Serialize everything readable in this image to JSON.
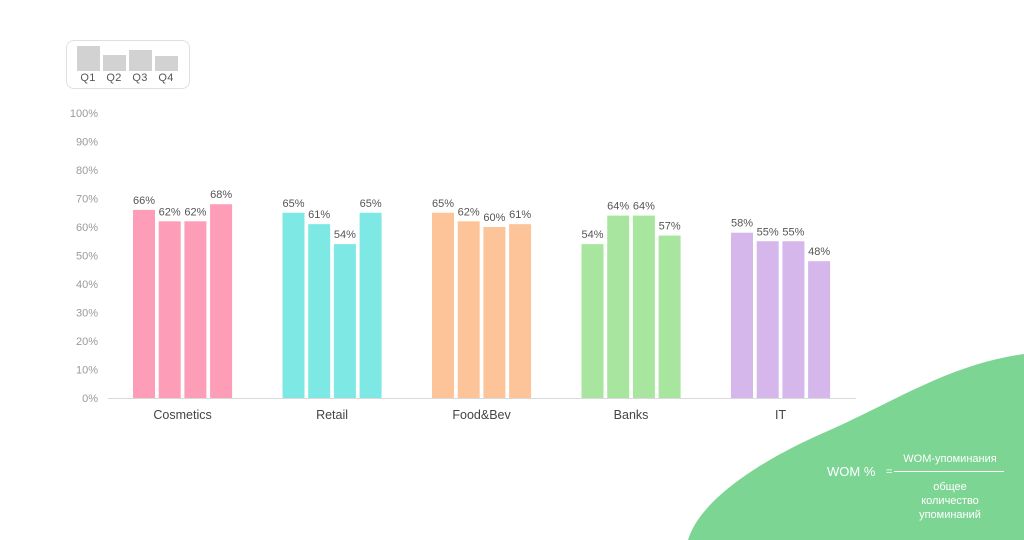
{
  "legend": {
    "labels": [
      "Q1",
      "Q2",
      "Q3",
      "Q4"
    ]
  },
  "formula": {
    "lhs": "WOM %",
    "equals": "=",
    "numerator": "WOM-упоминания",
    "denominator_lines": [
      "общее",
      "количество",
      "упоминаний"
    ]
  },
  "colors": {
    "Cosmetics": "#fe9db8",
    "Retail": "#7ee8e4",
    "Food&Bev": "#fdc49a",
    "Banks": "#a8e6a0",
    "IT": "#d5b7ec",
    "blob": "#7dd594",
    "legend_bars": "#d2d2d2"
  },
  "chart_data": {
    "type": "bar",
    "categories": [
      "Cosmetics",
      "Retail",
      "Food&Bev",
      "Banks",
      "IT"
    ],
    "series": [
      {
        "name": "Q1",
        "values": [
          66,
          65,
          65,
          54,
          58
        ]
      },
      {
        "name": "Q2",
        "values": [
          62,
          61,
          62,
          64,
          55
        ]
      },
      {
        "name": "Q3",
        "values": [
          62,
          54,
          60,
          64,
          55
        ]
      },
      {
        "name": "Q4",
        "values": [
          68,
          65,
          61,
          57,
          48
        ]
      }
    ],
    "data_labels": [
      [
        "66%",
        "62%",
        "62%",
        "68%"
      ],
      [
        "65%",
        "61%",
        "54%",
        "65%"
      ],
      [
        "65%",
        "62%",
        "60%",
        "61%"
      ],
      [
        "54%",
        "64%",
        "64%",
        "57%"
      ],
      [
        "58%",
        "55%",
        "55%",
        "48%"
      ]
    ],
    "y_ticks": [
      "0%",
      "10%",
      "20%",
      "30%",
      "40%",
      "50%",
      "60%",
      "70%",
      "80%",
      "90%",
      "100%"
    ],
    "ylim": [
      0,
      100
    ],
    "grid": false,
    "legend_position": "top-left",
    "title": "",
    "xlabel": "",
    "ylabel": ""
  }
}
